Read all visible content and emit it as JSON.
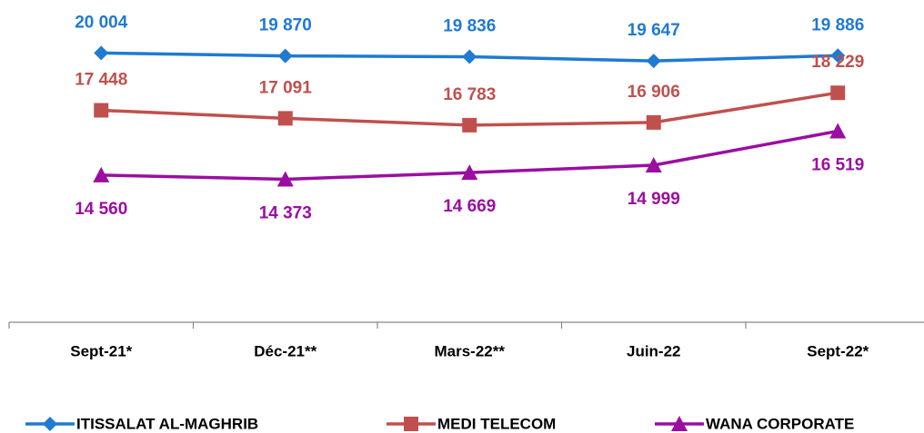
{
  "chart_data": {
    "type": "line",
    "categories": [
      "Sept-21*",
      "Déc-21**",
      "Mars-22**",
      "Juin-22",
      "Sept-22*"
    ],
    "ylim": [
      8000,
      22000
    ],
    "legend": "bottom",
    "series": [
      {
        "name": "ITISSALAT AL-MAGHRIB",
        "color": "#1f7ad2",
        "marker": "diamond",
        "label_position": "above",
        "values": [
          20004,
          19870,
          19836,
          19647,
          19886
        ],
        "value_labels": [
          "20 004",
          "19 870",
          "19 836",
          "19 647",
          "19 886"
        ]
      },
      {
        "name": "MEDI TELECOM",
        "color": "#c0504d",
        "marker": "square",
        "label_position": "above",
        "values": [
          17448,
          17091,
          16783,
          16906,
          18229
        ],
        "value_labels": [
          "17 448",
          "17 091",
          "16 783",
          "16 906",
          "18 229"
        ]
      },
      {
        "name": "WANA CORPORATE",
        "color": "#9b0ea1",
        "marker": "triangle",
        "label_position": "below",
        "values": [
          14560,
          14373,
          14669,
          14999,
          16519
        ],
        "value_labels": [
          "14 560",
          "14 373",
          "14 669",
          "14 999",
          "16 519"
        ]
      }
    ]
  }
}
